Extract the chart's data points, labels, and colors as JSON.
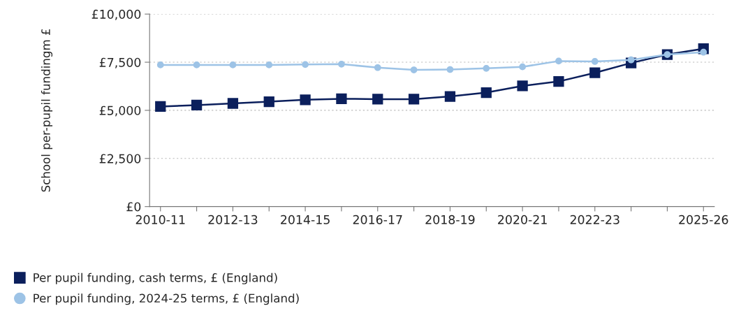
{
  "chart_data": {
    "type": "line",
    "ylabel": "School per-pupil fundingm £",
    "categories": [
      "2010-11",
      null,
      "2012-13",
      null,
      "2014-15",
      null,
      "2016-17",
      null,
      "2018-19",
      null,
      "2020-21",
      null,
      "2022-23",
      null,
      null,
      "2025-26"
    ],
    "series": [
      {
        "name": "Per pupil funding, cash terms, £ (England)",
        "color": "#0b1f5c",
        "marker": "square",
        "values": [
          5200,
          5270,
          5360,
          5450,
          5550,
          5600,
          5580,
          5580,
          5720,
          5920,
          6270,
          6500,
          6950,
          7460,
          7900,
          8200
        ]
      },
      {
        "name": "Per pupil funding, 2024-25 terms, £ (England)",
        "color": "#9dc3e6",
        "marker": "circle",
        "values": [
          7360,
          7360,
          7360,
          7360,
          7380,
          7400,
          7220,
          7100,
          7120,
          7180,
          7260,
          7560,
          7540,
          7620,
          7900,
          8020
        ]
      }
    ],
    "ylim": [
      0,
      10000
    ],
    "yticks": [
      {
        "value": 0,
        "label": "£0"
      },
      {
        "value": 2500,
        "label": "£2,500"
      },
      {
        "value": 5000,
        "label": "£5,000"
      },
      {
        "value": 7500,
        "label": "£7,500"
      },
      {
        "value": 10000,
        "label": "£10,000"
      }
    ],
    "grid": "y",
    "legend": "bottom left",
    "line_style": "solid"
  }
}
